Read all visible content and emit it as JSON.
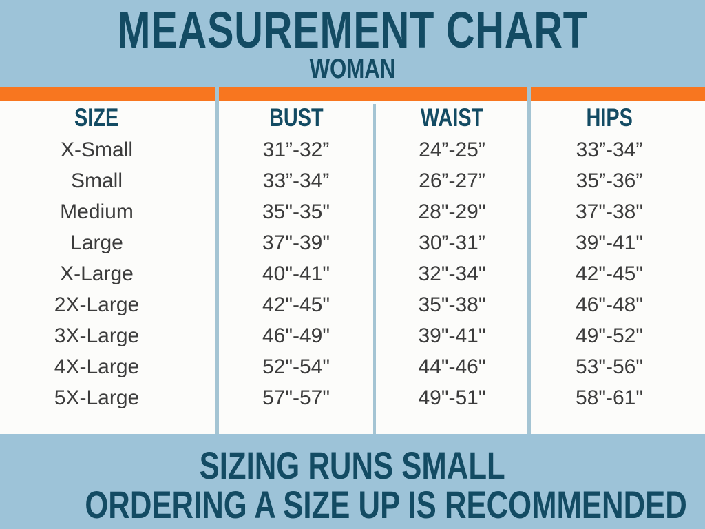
{
  "title": "MEASUREMENT CHART",
  "subtitle": "WOMAN",
  "footer": {
    "line1": "SIZING RUNS SMALL",
    "line2": "ORDERING A SIZE UP IS RECOMMENDED"
  },
  "colors": {
    "background": "#9dc3d8",
    "accent_bar": "#f8761f",
    "heading_text": "#134b63",
    "table_background": "#fcfcfa",
    "table_text": "#3c3c3c",
    "divider_line": "#a4c4d3"
  },
  "chart_data": {
    "type": "table",
    "title": "MEASUREMENT CHART",
    "subtitle": "WOMAN",
    "columns": [
      "SIZE",
      "BUST",
      "WAIST",
      "HIPS"
    ],
    "rows": [
      [
        "X-Small",
        "31”-32”",
        "24”-25”",
        "33”-34”"
      ],
      [
        "Small",
        "33”-34”",
        "26”-27”",
        "35”-36”"
      ],
      [
        "Medium",
        "35\"-35\"",
        "28\"-29\"",
        "37\"-38\""
      ],
      [
        "Large",
        "37\"-39\"",
        "30”-31”",
        "39\"-41\""
      ],
      [
        "X-Large",
        "40\"-41\"",
        "32\"-34\"",
        "42\"-45\""
      ],
      [
        "2X-Large",
        "42\"-45\"",
        "35\"-38\"",
        "46\"-48\""
      ],
      [
        "3X-Large",
        "46\"-49\"",
        "39\"-41\"",
        "49\"-52\""
      ],
      [
        "4X-Large",
        "52\"-54\"",
        "44\"-46\"",
        "53\"-56\""
      ],
      [
        "5X-Large",
        "57\"-57\"",
        "49\"-51\"",
        "58\"-61\""
      ]
    ],
    "notes": [
      "SIZING RUNS SMALL",
      "ORDERING A SIZE UP IS RECOMMENDED"
    ]
  }
}
